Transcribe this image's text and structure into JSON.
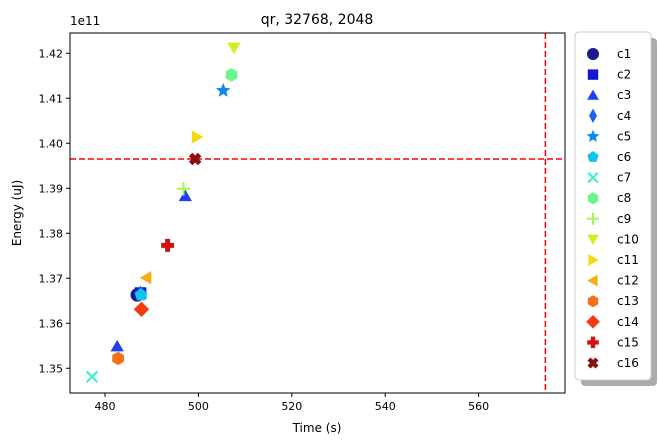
{
  "chart_data": {
    "type": "scatter",
    "title": "qr, 32768, 2048",
    "xlabel": "Time (s)",
    "ylabel": "Energy (uJ)",
    "y_offset_label": "1e11",
    "y_scale": 100000000000.0,
    "xlim": [
      472.5,
      578.5
    ],
    "ylim": [
      1.3445,
      1.4245
    ],
    "x_ticks": [
      480,
      500,
      520,
      540,
      560
    ],
    "y_ticks": [
      1.35,
      1.36,
      1.37,
      1.38,
      1.39,
      1.4,
      1.41,
      1.42
    ],
    "grid": false,
    "legend_position": "right-outside",
    "reference_lines": {
      "vertical_x": 574.3,
      "horizontal_y": 1.3965,
      "color": "#ff0000",
      "style": "dashed"
    },
    "series": [
      {
        "name": "c1",
        "marker": "circle",
        "color": "#1a1a8c",
        "points": [
          {
            "x": 486.9,
            "y": 1.3663
          }
        ]
      },
      {
        "name": "c2",
        "marker": "square",
        "color": "#1515d6",
        "points": [
          {
            "x": 487.6,
            "y": 1.3667
          }
        ]
      },
      {
        "name": "c3",
        "marker": "triangle-up",
        "color": "#1f3ff5",
        "points": [
          {
            "x": 482.6,
            "y": 1.3549
          },
          {
            "x": 497.2,
            "y": 1.3883
          }
        ]
      },
      {
        "name": "c4",
        "marker": "diamond-thin",
        "color": "#1565f5",
        "points": [
          {
            "x": 487.6,
            "y": 1.3666
          }
        ]
      },
      {
        "name": "c5",
        "marker": "star",
        "color": "#1188ee",
        "points": [
          {
            "x": 505.3,
            "y": 1.4117
          }
        ]
      },
      {
        "name": "c6",
        "marker": "pentagon",
        "color": "#11c3f0",
        "points": [
          {
            "x": 487.7,
            "y": 1.3663
          }
        ]
      },
      {
        "name": "c7",
        "marker": "x",
        "color": "#33f0cc",
        "points": [
          {
            "x": 477.2,
            "y": 1.3481
          }
        ]
      },
      {
        "name": "c8",
        "marker": "hexagon",
        "color": "#6cf58a",
        "points": [
          {
            "x": 507.1,
            "y": 1.4152
          }
        ]
      },
      {
        "name": "c9",
        "marker": "plus",
        "color": "#a5f555",
        "points": [
          {
            "x": 496.8,
            "y": 1.3899
          }
        ]
      },
      {
        "name": "c10",
        "marker": "triangle-down",
        "color": "#ccf020",
        "points": [
          {
            "x": 507.6,
            "y": 1.4212
          }
        ]
      },
      {
        "name": "c11",
        "marker": "triangle-right",
        "color": "#f5d80f",
        "points": [
          {
            "x": 499.7,
            "y": 1.4014
          }
        ]
      },
      {
        "name": "c12",
        "marker": "triangle-left",
        "color": "#f7ac15",
        "points": [
          {
            "x": 488.8,
            "y": 1.3701
          }
        ]
      },
      {
        "name": "c13",
        "marker": "hexagon",
        "color": "#f47215",
        "points": [
          {
            "x": 482.8,
            "y": 1.3522
          }
        ]
      },
      {
        "name": "c14",
        "marker": "diamond",
        "color": "#f23b12",
        "points": [
          {
            "x": 487.8,
            "y": 1.3631
          }
        ]
      },
      {
        "name": "c15",
        "marker": "plus-thick",
        "color": "#d01212",
        "points": [
          {
            "x": 493.4,
            "y": 1.3773
          }
        ]
      },
      {
        "name": "c16",
        "marker": "x-thick",
        "color": "#8a1010",
        "points": [
          {
            "x": 499.3,
            "y": 1.3965
          }
        ]
      }
    ]
  }
}
